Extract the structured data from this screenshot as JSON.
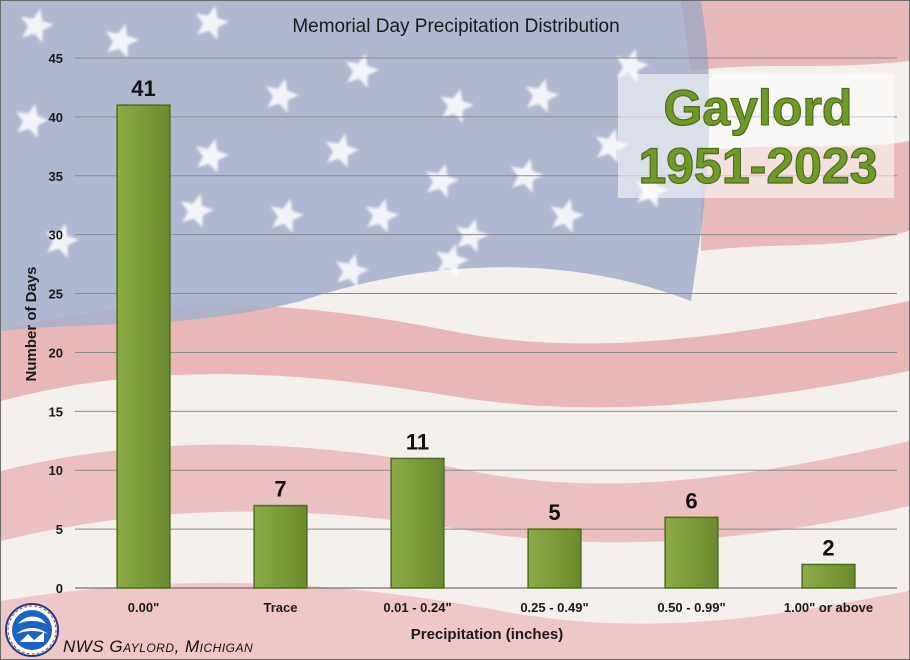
{
  "chart_data": {
    "type": "bar",
    "title": "Memorial Day Precipitation Distribution",
    "xlabel": "Precipitation (inches)",
    "ylabel": "Number of Days",
    "categories": [
      "0.00\"",
      "Trace",
      "0.01 - 0.24\"",
      "0.25 - 0.49\"",
      "0.50 - 0.99\"",
      "1.00\" or above"
    ],
    "values": [
      41,
      7,
      11,
      5,
      6,
      2
    ],
    "ylim": [
      0,
      45
    ],
    "yticks": [
      "0",
      "5",
      "10",
      "15",
      "20",
      "25",
      "30",
      "35",
      "40",
      "45"
    ],
    "grid": true,
    "bar_color": "#7a9a3a",
    "bar_edge_color": "#4f6b1e"
  },
  "badge": {
    "location": "Gaylord",
    "period": "1951-2023"
  },
  "credit": {
    "text": "NWS Gaylord, Michigan",
    "logo_icon": "nws-logo-icon"
  },
  "colors": {
    "flag_blue": "#9aa6c6",
    "flag_red": "#e4a4a4",
    "flag_white": "#f3f0ee"
  }
}
